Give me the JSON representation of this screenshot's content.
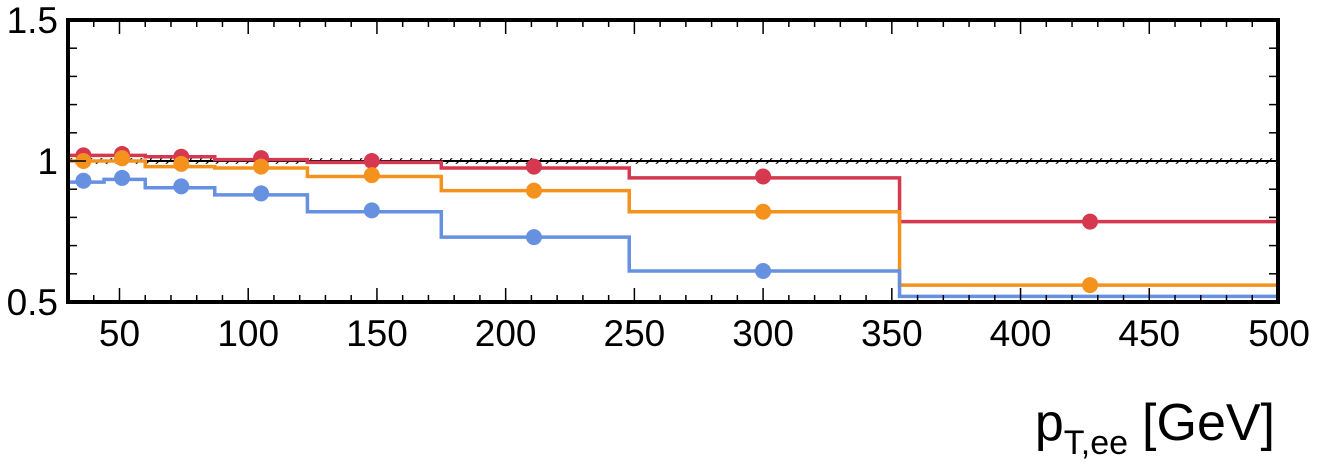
{
  "chart_data": {
    "type": "line",
    "title": "",
    "xlabel": {
      "main": "p",
      "subscript": "T,ee",
      "unit": "[GeV]"
    },
    "ylabel": "",
    "xlim": [
      30,
      500
    ],
    "ylim": [
      0.5,
      1.5
    ],
    "x_ticks": [
      50,
      100,
      150,
      200,
      250,
      300,
      350,
      400,
      450,
      500
    ],
    "y_ticks": [
      0.5,
      1,
      1.5
    ],
    "x_tick_labels": [
      "50",
      "100",
      "150",
      "200",
      "250",
      "300",
      "350",
      "400",
      "450",
      "500"
    ],
    "y_tick_labels": [
      "0.5",
      "1",
      "1.5"
    ],
    "grid": false,
    "reference_line": {
      "y": 1.0,
      "band": [
        0.99,
        1.01
      ],
      "hatched": true
    },
    "bin_edges": [
      30,
      44,
      60,
      87,
      123,
      175,
      248,
      353,
      500
    ],
    "series": [
      {
        "color": "#d6394f",
        "step_values": [
          1.02,
          1.02,
          1.015,
          1.005,
          0.995,
          0.975,
          0.94,
          0.785
        ],
        "points_x": [
          36,
          51,
          74,
          105,
          148,
          211,
          300,
          427
        ],
        "points_y": [
          1.02,
          1.025,
          1.015,
          1.01,
          1.0,
          0.98,
          0.945,
          0.785
        ]
      },
      {
        "color": "#f5921e",
        "step_values": [
          1.0,
          1.0,
          0.98,
          0.975,
          0.945,
          0.895,
          0.82,
          0.56
        ],
        "points_x": [
          36,
          51,
          74,
          105,
          148,
          211,
          300,
          427
        ],
        "points_y": [
          1.0,
          1.01,
          0.99,
          0.98,
          0.95,
          0.895,
          0.82,
          0.56
        ]
      },
      {
        "color": "#6690e0",
        "step_values": [
          0.925,
          0.935,
          0.905,
          0.88,
          0.82,
          0.73,
          0.61,
          0.52
        ],
        "points_x": [
          36,
          51,
          74,
          105,
          148,
          211,
          300
        ],
        "points_y": [
          0.93,
          0.94,
          0.91,
          0.885,
          0.825,
          0.73,
          0.61
        ]
      }
    ]
  }
}
